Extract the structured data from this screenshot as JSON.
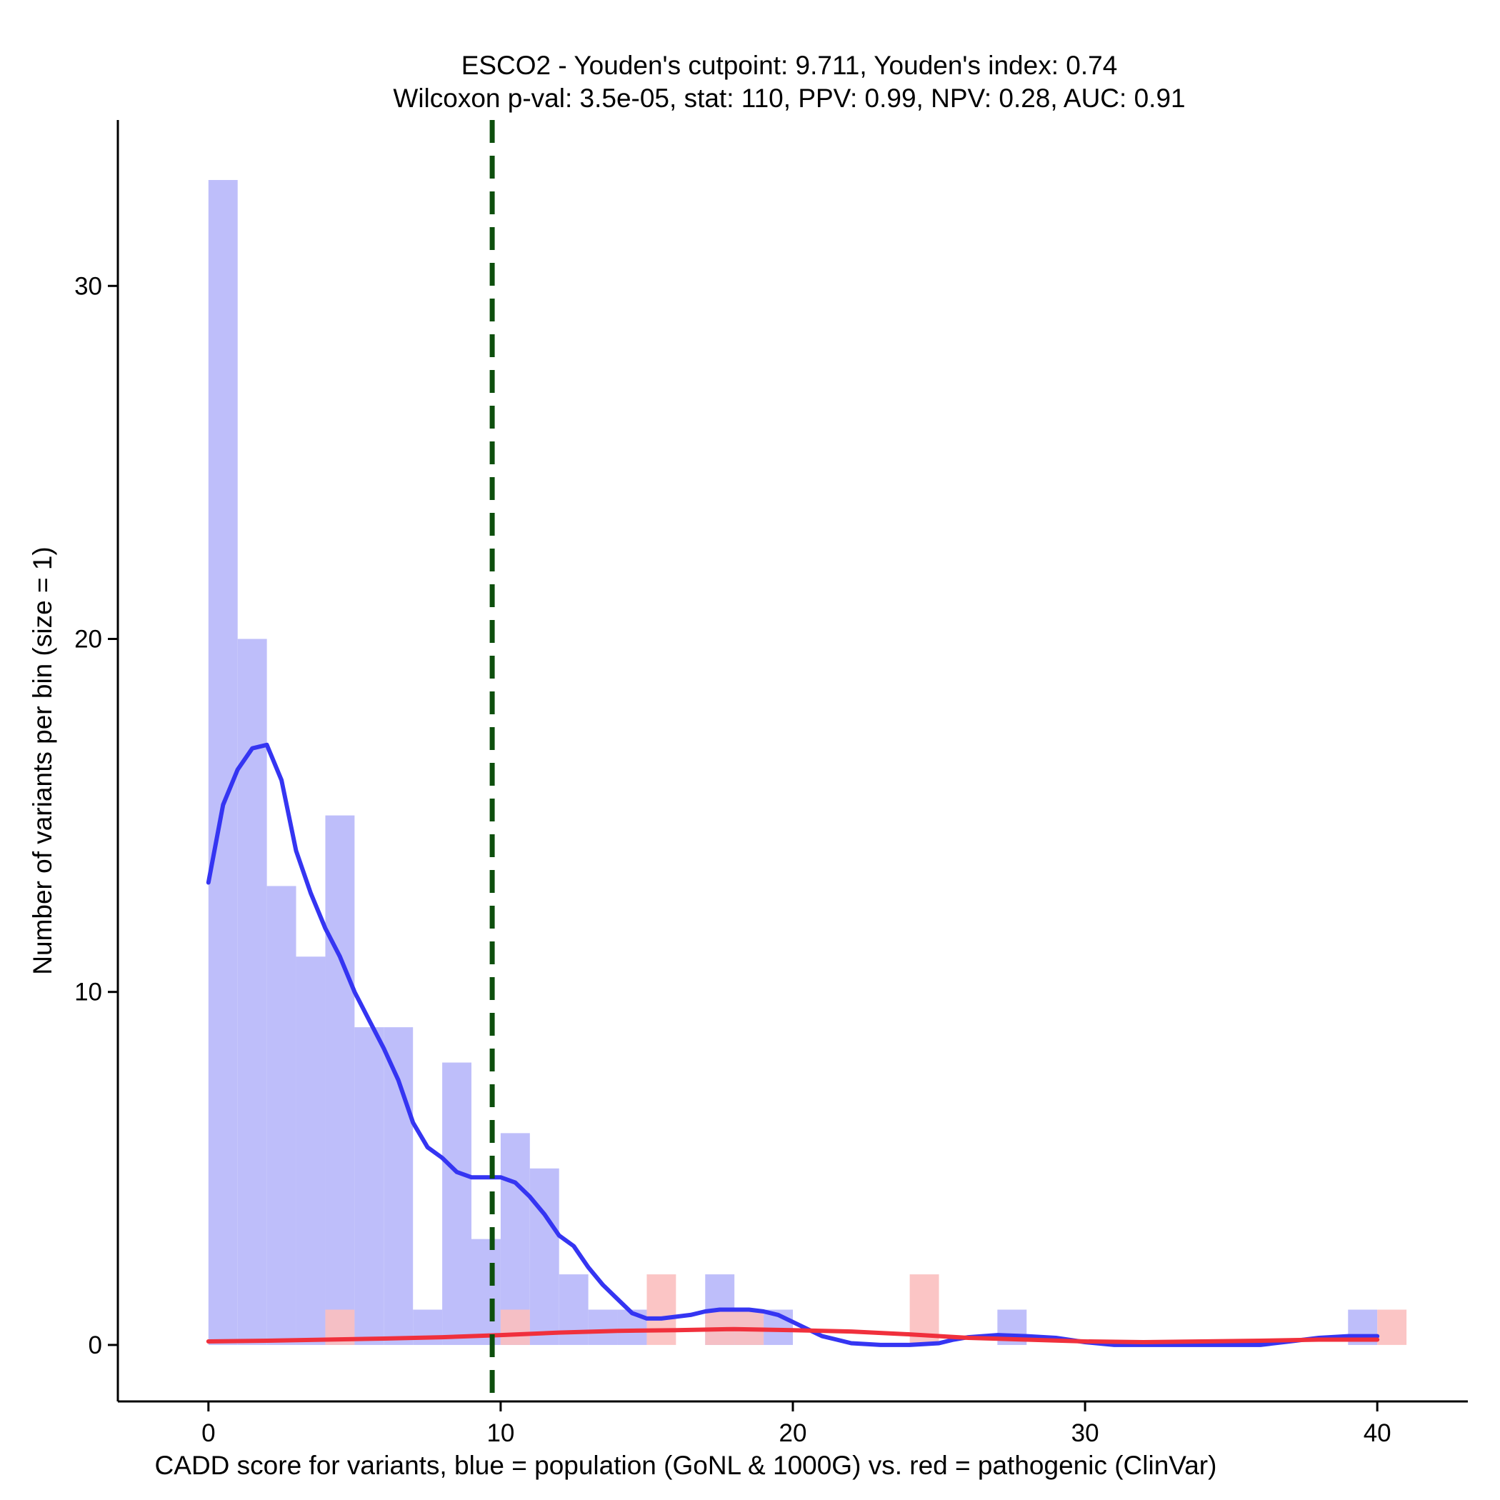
{
  "chart_data": {
    "type": "bar",
    "title": "ESCO2 - Youden's cutpoint: 9.711, Youden's index: 0.74",
    "subtitle": "Wilcoxon p-val: 3.5e-05, stat: 110, PPV: 0.99, NPV: 0.28, AUC: 0.91",
    "xlabel": "CADD score for variants, blue = population (GoNL & 1000G) vs. red = pathogenic (ClinVar)",
    "ylabel": "Number of variants per bin (size = 1)",
    "xlim": [
      -3.1,
      43.1
    ],
    "ylim": [
      -1.6,
      34.7
    ],
    "xticks": [
      0,
      10,
      20,
      30,
      40
    ],
    "yticks": [
      0,
      10,
      20,
      30
    ],
    "bin_width": 1,
    "grid": false,
    "legend": "none",
    "colors": {
      "population_bars": "#bebefa",
      "pathogenic_bars": "#fbbfbf",
      "population_density": "#3535f2",
      "pathogenic_density": "#f0303c",
      "cutpoint_line": "#0d4f0d"
    },
    "cutpoint": 9.711,
    "series": [
      {
        "name": "blue = population (GoNL & 1000G)",
        "bins": [
          {
            "x": 0,
            "count": 33
          },
          {
            "x": 1,
            "count": 20
          },
          {
            "x": 2,
            "count": 13
          },
          {
            "x": 3,
            "count": 11
          },
          {
            "x": 4,
            "count": 15
          },
          {
            "x": 5,
            "count": 9
          },
          {
            "x": 6,
            "count": 9
          },
          {
            "x": 7,
            "count": 1
          },
          {
            "x": 8,
            "count": 8
          },
          {
            "x": 9,
            "count": 3
          },
          {
            "x": 10,
            "count": 6
          },
          {
            "x": 11,
            "count": 5
          },
          {
            "x": 12,
            "count": 2
          },
          {
            "x": 13,
            "count": 1
          },
          {
            "x": 14,
            "count": 1
          },
          {
            "x": 17,
            "count": 2
          },
          {
            "x": 18,
            "count": 1
          },
          {
            "x": 19,
            "count": 1
          },
          {
            "x": 27,
            "count": 1
          },
          {
            "x": 39,
            "count": 1
          }
        ],
        "density_curve": [
          [
            0,
            13.1
          ],
          [
            0.5,
            15.3
          ],
          [
            1,
            16.3
          ],
          [
            1.5,
            16.9
          ],
          [
            2,
            17.0
          ],
          [
            2.5,
            16.0
          ],
          [
            3,
            14.0
          ],
          [
            3.5,
            12.8
          ],
          [
            4,
            11.8
          ],
          [
            4.5,
            11.0
          ],
          [
            5,
            10.0
          ],
          [
            5.5,
            9.2
          ],
          [
            6,
            8.4
          ],
          [
            6.5,
            7.5
          ],
          [
            7,
            6.3
          ],
          [
            7.5,
            5.6
          ],
          [
            8,
            5.3
          ],
          [
            8.5,
            4.9
          ],
          [
            9,
            4.75
          ],
          [
            9.5,
            4.75
          ],
          [
            10,
            4.75
          ],
          [
            10.5,
            4.6
          ],
          [
            11,
            4.2
          ],
          [
            11.5,
            3.7
          ],
          [
            12,
            3.1
          ],
          [
            12.5,
            2.8
          ],
          [
            13,
            2.2
          ],
          [
            13.5,
            1.7
          ],
          [
            14,
            1.3
          ],
          [
            14.5,
            0.9
          ],
          [
            15,
            0.75
          ],
          [
            15.5,
            0.75
          ],
          [
            16,
            0.8
          ],
          [
            16.5,
            0.85
          ],
          [
            17,
            0.95
          ],
          [
            17.5,
            1.0
          ],
          [
            18,
            1.0
          ],
          [
            18.5,
            1.0
          ],
          [
            19,
            0.95
          ],
          [
            19.5,
            0.85
          ],
          [
            20,
            0.65
          ],
          [
            20.5,
            0.45
          ],
          [
            21,
            0.25
          ],
          [
            21.5,
            0.15
          ],
          [
            22,
            0.05
          ],
          [
            23,
            0.0
          ],
          [
            24,
            0.0
          ],
          [
            25,
            0.05
          ],
          [
            25.5,
            0.15
          ],
          [
            26,
            0.22
          ],
          [
            27,
            0.28
          ],
          [
            28,
            0.25
          ],
          [
            29,
            0.2
          ],
          [
            30,
            0.08
          ],
          [
            31,
            0.0
          ],
          [
            32,
            0.0
          ],
          [
            33,
            0.0
          ],
          [
            34,
            0.0
          ],
          [
            35,
            0.0
          ],
          [
            36,
            0.0
          ],
          [
            37,
            0.1
          ],
          [
            38,
            0.2
          ],
          [
            39,
            0.25
          ],
          [
            40,
            0.25
          ]
        ]
      },
      {
        "name": "red = pathogenic (ClinVar)",
        "bins": [
          {
            "x": 4,
            "count": 1
          },
          {
            "x": 10,
            "count": 1
          },
          {
            "x": 15,
            "count": 2
          },
          {
            "x": 17,
            "count": 1
          },
          {
            "x": 18,
            "count": 1
          },
          {
            "x": 24,
            "count": 2
          },
          {
            "x": 40,
            "count": 1
          }
        ],
        "density_curve": [
          [
            0,
            0.1
          ],
          [
            2,
            0.12
          ],
          [
            4,
            0.15
          ],
          [
            6,
            0.18
          ],
          [
            8,
            0.22
          ],
          [
            10,
            0.28
          ],
          [
            12,
            0.35
          ],
          [
            14,
            0.4
          ],
          [
            16,
            0.42
          ],
          [
            18,
            0.45
          ],
          [
            20,
            0.42
          ],
          [
            22,
            0.38
          ],
          [
            24,
            0.3
          ],
          [
            26,
            0.2
          ],
          [
            28,
            0.15
          ],
          [
            30,
            0.1
          ],
          [
            32,
            0.08
          ],
          [
            34,
            0.1
          ],
          [
            36,
            0.12
          ],
          [
            38,
            0.15
          ],
          [
            40,
            0.15
          ]
        ]
      }
    ]
  }
}
